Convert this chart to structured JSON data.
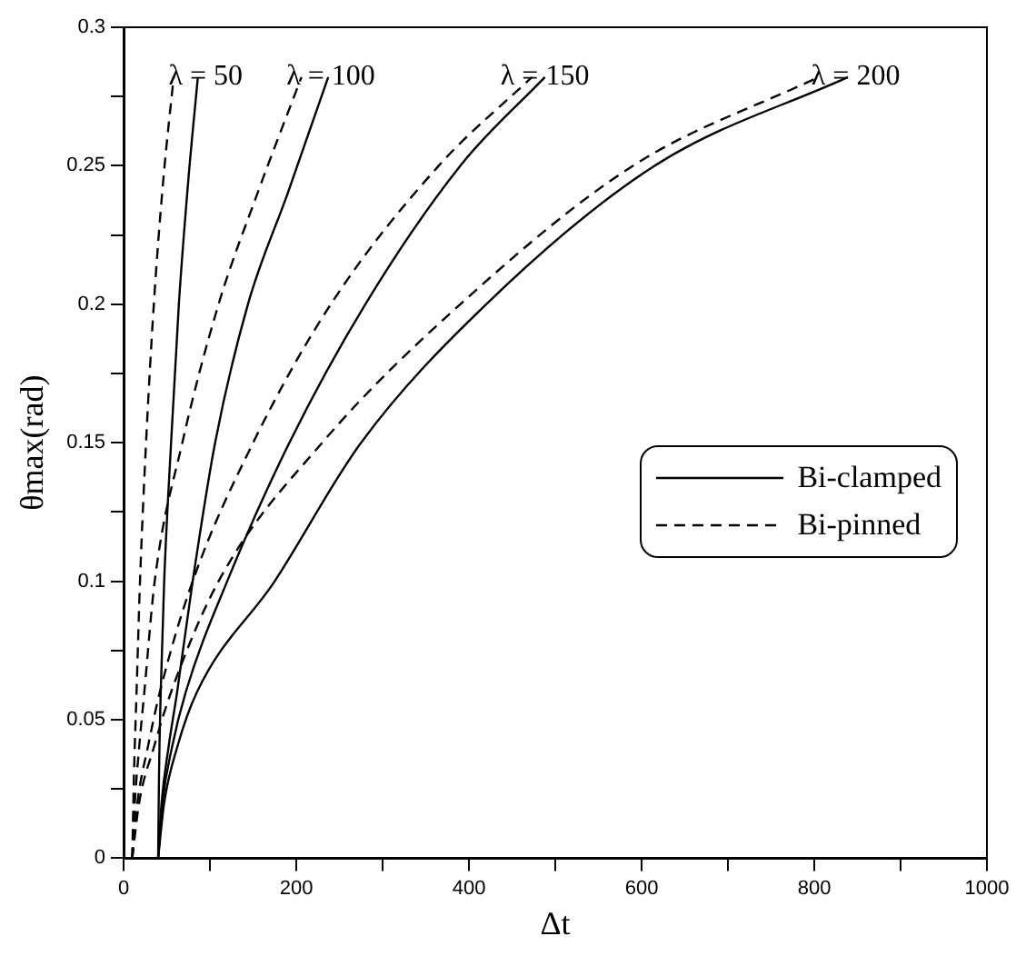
{
  "chart_data": {
    "type": "line",
    "xlabel": "Δt",
    "ylabel": "θmax(rad)",
    "xlim": [
      0,
      1000
    ],
    "ylim": [
      0,
      0.3
    ],
    "xticks": [
      0,
      {
        "value": 100,
        "label": null
      },
      200,
      {
        "value": 300,
        "label": null
      },
      400,
      {
        "value": 500,
        "label": null
      },
      600,
      {
        "value": 700,
        "label": null
      },
      800,
      {
        "value": 900,
        "label": null
      },
      1000
    ],
    "yticks": [
      0,
      {
        "value": 0.025,
        "label": null
      },
      0.05,
      {
        "value": 0.075,
        "label": null
      },
      0.1,
      {
        "value": 0.125,
        "label": null
      },
      0.15,
      {
        "value": 0.175,
        "label": null
      },
      0.2,
      {
        "value": 0.225,
        "label": null
      },
      0.25,
      {
        "value": 0.275,
        "label": null
      },
      0.3
    ],
    "grid": false,
    "legend": "right",
    "marker": "none",
    "series": [
      {
        "name": "Bi-clamped",
        "color": "#000000",
        "line_style": "solid",
        "x": [
          40,
          41,
          43,
          47,
          55,
          64,
          75,
          86
        ],
        "values": [
          0,
          0.03,
          0.06,
          0.1,
          0.15,
          0.2,
          0.245,
          0.282
        ]
      },
      {
        "name": "Bi-pinned",
        "color": "#000000",
        "line_style": "dashed",
        "x": [
          10,
          12,
          15,
          19,
          26,
          35,
          46,
          58
        ],
        "values": [
          0,
          0.03,
          0.06,
          0.1,
          0.15,
          0.2,
          0.245,
          0.282
        ]
      },
      {
        "color": "#000000",
        "line_style": "solid",
        "x": [
          40,
          44,
          52,
          62,
          80,
          106,
          144,
          190,
          237
        ],
        "values": [
          0,
          0.02,
          0.04,
          0.06,
          0.1,
          0.15,
          0.2,
          0.24,
          0.282
        ]
      },
      {
        "color": "#000000",
        "line_style": "dashed",
        "x": [
          10,
          13,
          18,
          24,
          36,
          68,
          110,
          155,
          206
        ],
        "values": [
          0,
          0.02,
          0.04,
          0.06,
          0.1,
          0.15,
          0.2,
          0.24,
          0.282
        ]
      },
      {
        "color": "#000000",
        "line_style": "solid",
        "x": [
          40,
          45,
          56,
          72,
          120,
          192,
          280,
          390,
          488
        ],
        "values": [
          0,
          0.02,
          0.04,
          0.06,
          0.1,
          0.15,
          0.2,
          0.25,
          0.282
        ]
      },
      {
        "color": "#000000",
        "line_style": "dashed",
        "x": [
          10,
          16,
          28,
          42,
          80,
          150,
          240,
          365,
          473
        ],
        "values": [
          0,
          0.02,
          0.04,
          0.06,
          0.1,
          0.15,
          0.2,
          0.25,
          0.282
        ]
      },
      {
        "color": "#000000",
        "line_style": "solid",
        "x": [
          40,
          47,
          62,
          85,
          175,
          275,
          420,
          615,
          839
        ],
        "values": [
          0,
          0.02,
          0.04,
          0.06,
          0.1,
          0.15,
          0.2,
          0.25,
          0.282
        ]
      },
      {
        "color": "#000000",
        "line_style": "dashed",
        "x": [
          10,
          18,
          35,
          55,
          110,
          230,
          390,
          590,
          805
        ],
        "values": [
          0,
          0.02,
          0.04,
          0.06,
          0.1,
          0.15,
          0.2,
          0.25,
          0.282
        ]
      }
    ],
    "annotations": [
      {
        "text": "λ = 50",
        "x": 95,
        "y": 0.282
      },
      {
        "text": "λ = 100",
        "x": 240,
        "y": 0.282
      },
      {
        "text": "λ = 150",
        "x": 488,
        "y": 0.282
      },
      {
        "text": "λ = 200",
        "x": 848,
        "y": 0.282
      }
    ]
  }
}
